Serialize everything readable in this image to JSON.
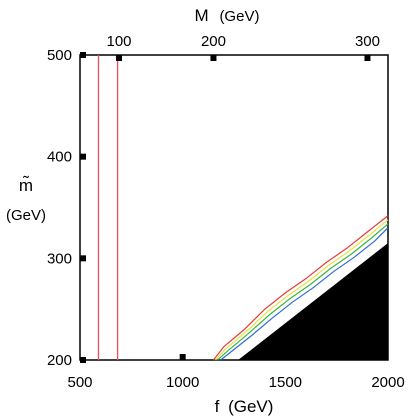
{
  "chart_data": {
    "type": "line",
    "title": "",
    "xlabel": {
      "symbol": "f",
      "unit": "(GeV)"
    },
    "ylabel": {
      "symbol": "m̃",
      "unit": "(GeV)"
    },
    "top_axis_label": {
      "symbol": "M",
      "unit": "(GeV)"
    },
    "xlim": [
      500,
      2000
    ],
    "ylim": [
      200,
      500
    ],
    "x_ticks": [
      "500",
      "1000",
      "1500",
      "2000"
    ],
    "y_ticks": [
      "200",
      "300",
      "400",
      "500"
    ],
    "top_ticks": [
      "100",
      "200",
      "300"
    ],
    "top_tick_f_positions": [
      690,
      1150,
      1900
    ],
    "grid": false,
    "legend": "none",
    "vertical_lines": [
      {
        "x": 590,
        "color": "#e8505a"
      },
      {
        "x": 683,
        "color": "#e8505a"
      }
    ],
    "series": [
      {
        "color": "#e83a3a",
        "x": [
          1150,
          1200,
          1300,
          1400,
          1500,
          1600,
          1700,
          1800,
          1900,
          2000
        ],
        "y": [
          200,
          213,
          230,
          250,
          266,
          280,
          296,
          310,
          326,
          342
        ]
      },
      {
        "color": "#e8e040",
        "x": [
          1160,
          1210,
          1310,
          1410,
          1510,
          1610,
          1710,
          1810,
          1910,
          2000
        ],
        "y": [
          200,
          211,
          228,
          247,
          263,
          277,
          293,
          307,
          323,
          338
        ]
      },
      {
        "color": "#3ab83a",
        "x": [
          1170,
          1220,
          1320,
          1420,
          1520,
          1620,
          1720,
          1820,
          1920,
          2000
        ],
        "y": [
          200,
          209,
          226,
          244,
          260,
          274,
          290,
          304,
          320,
          334
        ]
      },
      {
        "color": "#2f6bd8",
        "x": [
          1185,
          1235,
          1335,
          1435,
          1535,
          1635,
          1735,
          1835,
          1935,
          2000
        ],
        "y": [
          200,
          208,
          224,
          241,
          257,
          271,
          287,
          301,
          317,
          330
        ]
      }
    ],
    "excluded_region": {
      "color": "#000000",
      "x": [
        1270,
        2000,
        2000
      ],
      "y": [
        200,
        315,
        200
      ]
    }
  }
}
